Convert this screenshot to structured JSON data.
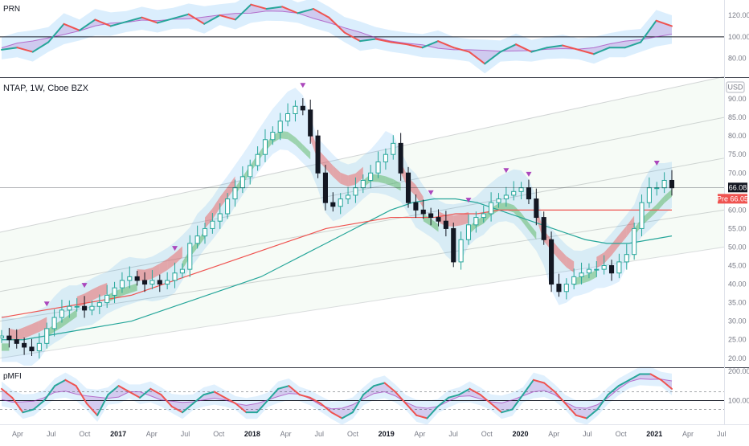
{
  "chart_data": {
    "type": "candlestick",
    "symbol_label": "NTAP, 1W, Cboe BZX",
    "currency": "USD",
    "panes": [
      {
        "id": "prn",
        "label": "PRN",
        "ticks": [
          "120.00",
          "100.00",
          "80.00"
        ],
        "tick_values": [
          120,
          100,
          80
        ],
        "ylim": [
          64,
          132
        ],
        "reference_level": 100,
        "series": [
          {
            "values": [
              88,
              90,
              86,
              95,
              112,
              106,
              116,
              110,
              114,
              118,
              113,
              117,
              121,
              112,
              120,
              116,
              130,
              126,
              128,
              122,
              126,
              118,
              104,
              96,
              98,
              95,
              93,
              90,
              96,
              90,
              86,
              75,
              86,
              93,
              86,
              90,
              92,
              88,
              84,
              90,
              90,
              95,
              115,
              110
            ]
          }
        ]
      },
      {
        "id": "price",
        "ticks": [
          "90.00",
          "85.00",
          "80.00",
          "75.00",
          "70.00",
          "65.00",
          "60.00",
          "55.00",
          "50.00",
          "45.00",
          "40.00",
          "35.00",
          "30.00",
          "25.00",
          "20.00"
        ],
        "tick_values": [
          90,
          85,
          80,
          75,
          70,
          65,
          60,
          55,
          50,
          45,
          40,
          35,
          30,
          25,
          20
        ],
        "ylim": [
          18,
          95
        ],
        "last_price": "66.08",
        "prev_close_label": "Pre 66.05",
        "closes": [
          26,
          25,
          24,
          23,
          22,
          24,
          28,
          31,
          33,
          34,
          34,
          33,
          34,
          35,
          37,
          39,
          41,
          42,
          41,
          40,
          41,
          40,
          41,
          43,
          44,
          51,
          53,
          55,
          57,
          59,
          63,
          66,
          69,
          72,
          75,
          79,
          81,
          84,
          86,
          88,
          87,
          80,
          70,
          62,
          61,
          63,
          64,
          66,
          68,
          70,
          73,
          75,
          78,
          70,
          62,
          60,
          59,
          58,
          57,
          55,
          46,
          52,
          56,
          58,
          59,
          62,
          63,
          64,
          65,
          66,
          63,
          58,
          52,
          40,
          38,
          40,
          42,
          43,
          44,
          44,
          45,
          43,
          46,
          48,
          55,
          62,
          66,
          66,
          68,
          66
        ],
        "moving_averages": [
          {
            "values": [
              25,
              25,
              26,
              27,
              28,
              29,
              30,
              32,
              34,
              36,
              38,
              40,
              42,
              45,
              48,
              51,
              54,
              57,
              60,
              62,
              63,
              63,
              62,
              60,
              58,
              56,
              54,
              52,
              51,
              51,
              52,
              53
            ]
          },
          {
            "values": [
              31,
              32,
              33,
              34,
              35,
              36,
              37,
              39,
              41,
              43,
              45,
              47,
              49,
              51,
              53,
              55,
              56,
              57,
              58,
              58,
              58,
              59,
              59,
              60,
              60,
              60,
              60,
              60,
              60,
              60,
              60,
              60
            ]
          }
        ]
      },
      {
        "id": "pmf",
        "label": "pMFI",
        "ticks": [
          "200.00",
          "100.00"
        ],
        "tick_values": [
          200,
          100
        ],
        "ylim": [
          25,
          205
        ],
        "reference_level": 100,
        "series": [
          {
            "values": [
              140,
              110,
              60,
              70,
              100,
              150,
              170,
              150,
              90,
              50,
              120,
              150,
              130,
              110,
              140,
              120,
              80,
              60,
              90,
              120,
              130,
              110,
              90,
              60,
              60,
              100,
              140,
              150,
              120,
              110,
              90,
              60,
              40,
              60,
              120,
              150,
              160,
              130,
              90,
              50,
              40,
              80,
              110,
              120,
              140,
              120,
              90,
              60,
              70,
              120,
              170,
              160,
              130,
              90,
              50,
              40,
              70,
              120,
              150,
              170,
              190,
              190,
              170,
              140
            ]
          }
        ]
      }
    ],
    "x_axis": {
      "ticks": [
        "Apr",
        "Jul",
        "Oct",
        "2017",
        "Apr",
        "Jul",
        "Oct",
        "2018",
        "Apr",
        "Jul",
        "Oct",
        "2019",
        "Apr",
        "Jul",
        "Oct",
        "2020",
        "Apr",
        "Jul",
        "Oct",
        "2021",
        "Apr",
        "Jul"
      ],
      "year_ticks": [
        "2017",
        "2018",
        "2019",
        "2020",
        "2021"
      ]
    },
    "colors": {
      "up": "#26a69a",
      "down": "#ef5350",
      "cloud_green": "#4caf50",
      "cloud_red": "#ef5350",
      "cloud_blue": "#2196f3",
      "cloud_purple": "#9c27b0",
      "ma_teal": "#26a69a",
      "ma_red": "#ef5350",
      "signal_marker": "#ab47bc",
      "last_price_badge": "#131722",
      "prev_close_badge": "#ef5350",
      "channel_line": "#9598a1"
    }
  }
}
